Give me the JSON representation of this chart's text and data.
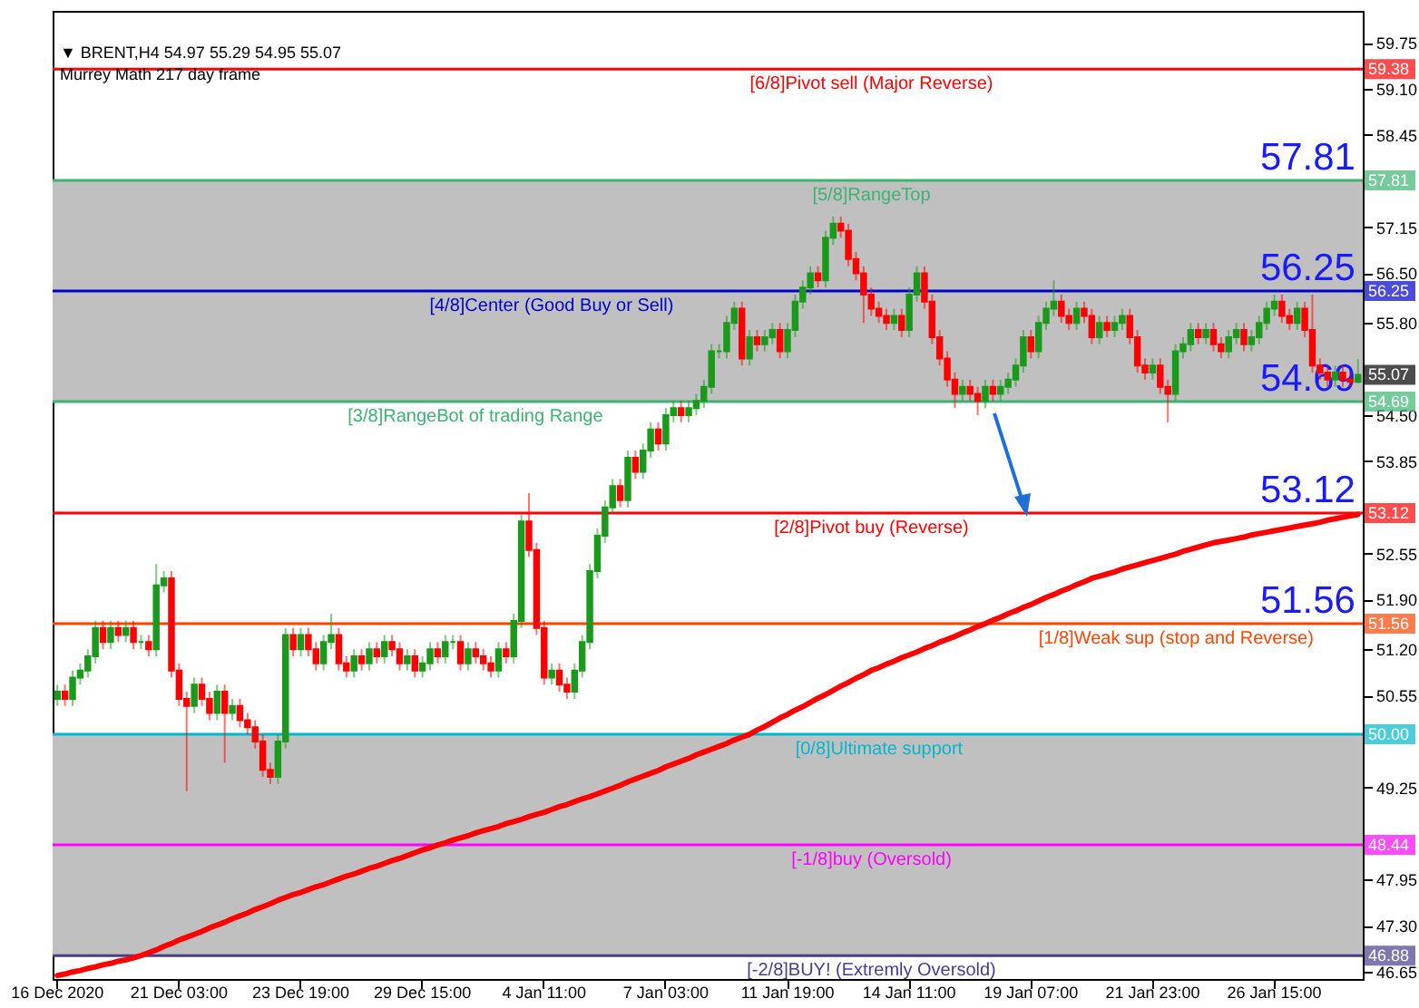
{
  "chart_data": {
    "type": "candlestick",
    "title": "▼ BRENT,H4  54.97 55.29 54.95 55.07",
    "subtitle": "Murrey Math 217 day frame",
    "categories": [
      "16 Dec 2020",
      null,
      null,
      null,
      null,
      null,
      null,
      null,
      null,
      null,
      null,
      null,
      null,
      null,
      null,
      null,
      "21 Dec 03:00",
      null,
      null,
      null,
      null,
      null,
      null,
      null,
      null,
      null,
      null,
      null,
      null,
      null,
      null,
      null,
      "23 Dec 19:00",
      null,
      null,
      null,
      null,
      null,
      null,
      null,
      null,
      null,
      null,
      null,
      null,
      null,
      null,
      null,
      "29 Dec 15:00",
      null,
      null,
      null,
      null,
      null,
      null,
      null,
      null,
      null,
      null,
      null,
      null,
      null,
      null,
      null,
      "4 Jan 11:00",
      null,
      null,
      null,
      null,
      null,
      null,
      null,
      null,
      null,
      null,
      null,
      null,
      null,
      null,
      null,
      "7 Jan 03:00",
      null,
      null,
      null,
      null,
      null,
      null,
      null,
      null,
      null,
      null,
      null,
      null,
      null,
      null,
      null,
      "11 Jan 19:00",
      null,
      null,
      null,
      null,
      null,
      null,
      null,
      null,
      null,
      null,
      null,
      null,
      null,
      null,
      null,
      "14 Jan 11:00",
      null,
      null,
      null,
      null,
      null,
      null,
      null,
      null,
      null,
      null,
      null,
      null,
      null,
      null,
      null,
      "19 Jan 07:00",
      null,
      null,
      null,
      null,
      null,
      null,
      null,
      null,
      null,
      null,
      null,
      null,
      null,
      null,
      null,
      "21 Jan 23:00",
      null,
      null,
      null,
      null,
      null,
      null,
      null,
      null,
      null,
      null,
      null,
      null,
      null,
      null,
      null,
      "26 Jan 15:00",
      null,
      null,
      null,
      null,
      null,
      null,
      null,
      null,
      null,
      null,
      null
    ],
    "ohlc": [
      [
        50.5,
        50.7,
        50.4,
        50.6
      ],
      [
        50.6,
        50.7,
        50.4,
        50.5
      ],
      [
        50.5,
        50.9,
        50.4,
        50.8
      ],
      [
        50.8,
        51.0,
        50.7,
        50.9
      ],
      [
        50.9,
        51.2,
        50.8,
        51.1
      ],
      [
        51.1,
        51.6,
        51.0,
        51.5
      ],
      [
        51.5,
        51.6,
        51.2,
        51.3
      ],
      [
        51.3,
        51.6,
        51.2,
        51.5
      ],
      [
        51.5,
        51.6,
        51.3,
        51.4
      ],
      [
        51.4,
        51.6,
        51.3,
        51.5
      ],
      [
        51.5,
        51.6,
        51.2,
        51.3
      ],
      [
        51.3,
        51.4,
        51.2,
        51.3
      ],
      [
        51.3,
        51.4,
        51.1,
        51.2
      ],
      [
        51.2,
        52.4,
        51.1,
        52.1
      ],
      [
        52.1,
        52.3,
        52.0,
        52.2
      ],
      [
        52.2,
        52.3,
        50.8,
        50.9
      ],
      [
        50.9,
        51.0,
        50.4,
        50.5
      ],
      [
        50.5,
        50.6,
        49.2,
        50.4
      ],
      [
        50.4,
        50.8,
        50.3,
        50.7
      ],
      [
        50.7,
        50.8,
        50.4,
        50.5
      ],
      [
        50.5,
        50.6,
        50.2,
        50.3
      ],
      [
        50.3,
        50.7,
        50.2,
        50.6
      ],
      [
        50.6,
        50.7,
        49.6,
        50.3
      ],
      [
        50.3,
        50.5,
        50.2,
        50.4
      ],
      [
        50.4,
        50.5,
        50.1,
        50.2
      ],
      [
        50.2,
        50.3,
        50.0,
        50.1
      ],
      [
        50.1,
        50.2,
        49.8,
        49.9
      ],
      [
        49.9,
        50.0,
        49.4,
        49.5
      ],
      [
        49.5,
        49.6,
        49.3,
        49.4
      ],
      [
        49.4,
        50.0,
        49.3,
        49.9
      ],
      [
        49.9,
        51.5,
        49.8,
        51.4
      ],
      [
        51.4,
        51.5,
        51.1,
        51.2
      ],
      [
        51.2,
        51.5,
        51.1,
        51.4
      ],
      [
        51.4,
        51.5,
        51.1,
        51.2
      ],
      [
        51.2,
        51.3,
        50.9,
        51.0
      ],
      [
        51.0,
        51.4,
        50.9,
        51.3
      ],
      [
        51.3,
        51.7,
        51.2,
        51.4
      ],
      [
        51.4,
        51.5,
        50.9,
        51.0
      ],
      [
        51.0,
        51.1,
        50.8,
        50.9
      ],
      [
        50.9,
        51.2,
        50.8,
        51.1
      ],
      [
        51.1,
        51.2,
        50.9,
        51.0
      ],
      [
        51.0,
        51.3,
        50.9,
        51.2
      ],
      [
        51.2,
        51.3,
        51.0,
        51.1
      ],
      [
        51.1,
        51.4,
        51.0,
        51.3
      ],
      [
        51.3,
        51.4,
        51.1,
        51.2
      ],
      [
        51.2,
        51.3,
        50.9,
        51.0
      ],
      [
        51.0,
        51.2,
        50.9,
        51.1
      ],
      [
        51.1,
        51.2,
        50.8,
        50.9
      ],
      [
        50.9,
        51.1,
        50.8,
        51.0
      ],
      [
        51.0,
        51.3,
        50.9,
        51.2
      ],
      [
        51.2,
        51.3,
        51.0,
        51.1
      ],
      [
        51.1,
        51.4,
        51.0,
        51.3
      ],
      [
        51.3,
        51.4,
        51.2,
        51.3
      ],
      [
        51.3,
        51.4,
        50.9,
        51.0
      ],
      [
        51.0,
        51.3,
        50.9,
        51.2
      ],
      [
        51.2,
        51.3,
        51.0,
        51.1
      ],
      [
        51.1,
        51.2,
        50.9,
        51.0
      ],
      [
        51.0,
        51.1,
        50.8,
        50.9
      ],
      [
        50.9,
        51.3,
        50.8,
        51.2
      ],
      [
        51.2,
        51.3,
        51.0,
        51.1
      ],
      [
        51.1,
        51.7,
        51.0,
        51.6
      ],
      [
        51.6,
        53.1,
        51.5,
        53.0
      ],
      [
        53.0,
        53.4,
        52.5,
        52.6
      ],
      [
        52.6,
        52.7,
        51.4,
        51.5
      ],
      [
        51.5,
        51.6,
        50.7,
        50.8
      ],
      [
        50.8,
        51.0,
        50.7,
        50.9
      ],
      [
        50.9,
        51.0,
        50.6,
        50.7
      ],
      [
        50.7,
        50.8,
        50.5,
        50.6
      ],
      [
        50.6,
        51.0,
        50.5,
        50.9
      ],
      [
        50.9,
        51.4,
        50.8,
        51.3
      ],
      [
        51.3,
        52.4,
        51.2,
        52.3
      ],
      [
        52.3,
        52.9,
        52.2,
        52.8
      ],
      [
        52.8,
        53.3,
        52.7,
        53.2
      ],
      [
        53.2,
        53.6,
        53.1,
        53.5
      ],
      [
        53.5,
        53.6,
        53.2,
        53.3
      ],
      [
        53.3,
        54.0,
        53.2,
        53.9
      ],
      [
        53.9,
        54.0,
        53.6,
        53.7
      ],
      [
        53.7,
        54.1,
        53.6,
        54.0
      ],
      [
        54.0,
        54.4,
        53.9,
        54.3
      ],
      [
        54.3,
        54.4,
        54.0,
        54.1
      ],
      [
        54.1,
        54.6,
        54.0,
        54.5
      ],
      [
        54.5,
        54.7,
        54.4,
        54.6
      ],
      [
        54.6,
        54.7,
        54.4,
        54.5
      ],
      [
        54.5,
        54.7,
        54.4,
        54.6
      ],
      [
        54.6,
        54.8,
        54.5,
        54.7
      ],
      [
        54.7,
        55.0,
        54.6,
        54.9
      ],
      [
        54.9,
        55.5,
        54.8,
        55.4
      ],
      [
        55.4,
        55.5,
        55.3,
        55.4
      ],
      [
        55.4,
        55.9,
        55.3,
        55.8
      ],
      [
        55.8,
        56.1,
        55.7,
        56.0
      ],
      [
        56.0,
        56.1,
        55.2,
        55.3
      ],
      [
        55.3,
        55.7,
        55.2,
        55.6
      ],
      [
        55.6,
        55.7,
        55.4,
        55.5
      ],
      [
        55.5,
        55.7,
        55.4,
        55.6
      ],
      [
        55.6,
        55.8,
        55.5,
        55.7
      ],
      [
        55.7,
        55.8,
        55.3,
        55.4
      ],
      [
        55.4,
        55.8,
        55.3,
        55.7
      ],
      [
        55.7,
        56.2,
        55.6,
        56.1
      ],
      [
        56.1,
        56.4,
        56.0,
        56.3
      ],
      [
        56.3,
        56.6,
        56.2,
        56.5
      ],
      [
        56.5,
        56.6,
        56.3,
        56.4
      ],
      [
        56.4,
        57.1,
        56.3,
        57.0
      ],
      [
        57.0,
        57.3,
        56.9,
        57.2
      ],
      [
        57.2,
        57.3,
        57.0,
        57.1
      ],
      [
        57.1,
        57.2,
        56.6,
        56.7
      ],
      [
        56.7,
        56.8,
        56.4,
        56.5
      ],
      [
        56.5,
        56.6,
        55.8,
        56.2
      ],
      [
        56.2,
        56.3,
        55.9,
        56.0
      ],
      [
        56.0,
        56.1,
        55.8,
        55.9
      ],
      [
        55.9,
        56.0,
        55.7,
        55.8
      ],
      [
        55.8,
        56.0,
        55.7,
        55.9
      ],
      [
        55.9,
        56.0,
        55.6,
        55.7
      ],
      [
        55.7,
        56.3,
        55.6,
        56.2
      ],
      [
        56.2,
        56.6,
        56.1,
        56.5
      ],
      [
        56.5,
        56.6,
        56.0,
        56.1
      ],
      [
        56.1,
        56.2,
        55.5,
        55.6
      ],
      [
        55.6,
        55.7,
        55.2,
        55.3
      ],
      [
        55.3,
        55.4,
        54.9,
        55.0
      ],
      [
        55.0,
        55.1,
        54.6,
        54.8
      ],
      [
        54.8,
        55.0,
        54.7,
        54.9
      ],
      [
        54.9,
        55.0,
        54.7,
        54.8
      ],
      [
        54.8,
        54.9,
        54.5,
        54.7
      ],
      [
        54.7,
        55.0,
        54.6,
        54.9
      ],
      [
        54.9,
        55.0,
        54.7,
        54.8
      ],
      [
        54.8,
        55.0,
        54.7,
        54.9
      ],
      [
        54.9,
        55.1,
        54.8,
        55.0
      ],
      [
        55.0,
        55.3,
        54.9,
        55.2
      ],
      [
        55.2,
        55.7,
        55.1,
        55.6
      ],
      [
        55.6,
        55.7,
        55.3,
        55.4
      ],
      [
        55.4,
        55.9,
        55.3,
        55.8
      ],
      [
        55.8,
        56.1,
        55.7,
        56.0
      ],
      [
        56.0,
        56.4,
        55.9,
        56.1
      ],
      [
        56.1,
        56.2,
        55.8,
        55.9
      ],
      [
        55.9,
        56.0,
        55.7,
        55.8
      ],
      [
        55.8,
        56.1,
        55.7,
        56.0
      ],
      [
        56.0,
        56.1,
        55.8,
        55.9
      ],
      [
        55.9,
        56.0,
        55.5,
        55.6
      ],
      [
        55.6,
        55.9,
        55.5,
        55.8
      ],
      [
        55.8,
        55.9,
        55.6,
        55.7
      ],
      [
        55.7,
        55.9,
        55.6,
        55.8
      ],
      [
        55.8,
        56.0,
        55.7,
        55.9
      ],
      [
        55.9,
        56.0,
        55.5,
        55.6
      ],
      [
        55.6,
        55.7,
        55.1,
        55.2
      ],
      [
        55.2,
        55.3,
        55.0,
        55.1
      ],
      [
        55.1,
        55.3,
        55.0,
        55.2
      ],
      [
        55.2,
        55.3,
        54.8,
        54.9
      ],
      [
        54.9,
        55.0,
        54.4,
        54.8
      ],
      [
        54.8,
        55.5,
        54.7,
        55.4
      ],
      [
        55.4,
        55.6,
        55.3,
        55.5
      ],
      [
        55.5,
        55.8,
        55.4,
        55.7
      ],
      [
        55.7,
        55.8,
        55.5,
        55.6
      ],
      [
        55.6,
        55.8,
        55.5,
        55.7
      ],
      [
        55.7,
        55.8,
        55.4,
        55.5
      ],
      [
        55.5,
        55.6,
        55.3,
        55.4
      ],
      [
        55.4,
        55.7,
        55.3,
        55.6
      ],
      [
        55.6,
        55.8,
        55.5,
        55.7
      ],
      [
        55.7,
        55.8,
        55.4,
        55.5
      ],
      [
        55.5,
        55.7,
        55.4,
        55.6
      ],
      [
        55.6,
        55.9,
        55.5,
        55.8
      ],
      [
        55.8,
        56.1,
        55.7,
        56.0
      ],
      [
        56.0,
        56.2,
        55.9,
        56.1
      ],
      [
        56.1,
        56.2,
        55.8,
        55.9
      ],
      [
        55.9,
        56.0,
        55.7,
        55.8
      ],
      [
        55.8,
        56.1,
        55.7,
        56.0
      ],
      [
        56.0,
        56.1,
        55.6,
        55.7
      ],
      [
        55.7,
        56.2,
        55.1,
        55.2
      ],
      [
        55.2,
        55.3,
        55.0,
        55.1
      ],
      [
        55.1,
        55.2,
        54.9,
        55.0
      ],
      [
        55.0,
        55.2,
        54.9,
        55.1
      ],
      [
        55.1,
        55.2,
        54.9,
        55.0
      ],
      [
        55.0,
        55.1,
        54.9,
        54.97
      ],
      [
        54.97,
        55.29,
        54.95,
        55.07
      ]
    ],
    "series": [
      {
        "type": "line",
        "color": "#ff0000",
        "values": [
          46.6,
          46.62,
          46.65,
          46.67,
          46.7,
          46.72,
          46.75,
          46.77,
          46.8,
          46.82,
          46.85,
          46.88,
          46.92,
          46.96,
          47.01,
          47.05,
          47.1,
          47.14,
          47.18,
          47.22,
          47.27,
          47.31,
          47.35,
          47.4,
          47.44,
          47.48,
          47.53,
          47.57,
          47.61,
          47.66,
          47.7,
          47.74,
          47.77,
          47.81,
          47.85,
          47.88,
          47.92,
          47.96,
          48.0,
          48.03,
          48.07,
          48.11,
          48.14,
          48.18,
          48.22,
          48.25,
          48.29,
          48.33,
          48.37,
          48.4,
          48.44,
          48.47,
          48.51,
          48.54,
          48.57,
          48.61,
          48.64,
          48.67,
          48.7,
          48.74,
          48.77,
          48.8,
          48.84,
          48.87,
          48.9,
          48.94,
          48.98,
          49.01,
          49.05,
          49.09,
          49.12,
          49.16,
          49.2,
          49.24,
          49.28,
          49.33,
          49.37,
          49.41,
          49.45,
          49.49,
          49.54,
          49.58,
          49.62,
          49.66,
          49.71,
          49.75,
          49.79,
          49.83,
          49.87,
          49.92,
          49.96,
          50.0,
          50.06,
          50.11,
          50.17,
          50.23,
          50.28,
          50.34,
          50.39,
          50.45,
          50.51,
          50.56,
          50.62,
          50.68,
          50.73,
          50.79,
          50.84,
          50.9,
          50.94,
          50.99,
          51.03,
          51.08,
          51.12,
          51.16,
          51.21,
          51.25,
          51.3,
          51.34,
          51.38,
          51.43,
          51.47,
          51.52,
          51.56,
          51.61,
          51.65,
          51.7,
          51.74,
          51.79,
          51.83,
          51.88,
          51.93,
          51.97,
          52.02,
          52.06,
          52.11,
          52.15,
          52.2,
          52.23,
          52.26,
          52.29,
          52.33,
          52.36,
          52.39,
          52.42,
          52.45,
          52.48,
          52.51,
          52.54,
          52.58,
          52.61,
          52.64,
          52.67,
          52.7,
          52.72,
          52.74,
          52.76,
          52.78,
          52.81,
          52.83,
          52.85,
          52.87,
          52.89,
          52.91,
          52.93,
          52.95,
          52.97,
          52.99,
          53.02,
          53.04,
          53.06,
          53.08,
          53.1
        ]
      }
    ],
    "ylim": [
      46.55,
      60.2
    ],
    "yticks": [
      59.75,
      {
        "value": 59.1,
        "label": "59.10"
      },
      58.45,
      57.15,
      {
        "value": 56.5,
        "label": "56.50"
      },
      {
        "value": 55.8,
        "label": "55.80"
      },
      {
        "value": 54.5,
        "label": "54.50"
      },
      53.85,
      52.55,
      {
        "value": 51.9,
        "label": "51.90"
      },
      {
        "value": 51.2,
        "label": "51.20"
      },
      50.55,
      49.25,
      47.95,
      {
        "value": 47.3,
        "label": "47.30"
      },
      46.65
    ],
    "ref_lines": [
      {
        "axis": "y",
        "value": 59.38,
        "label": "[6/8]Pivot sell (Major Reverse)",
        "color": "#ff0000"
      },
      {
        "axis": "y",
        "value": 57.81,
        "label": "[5/8]RangeTop",
        "color": "#3cb371"
      },
      {
        "axis": "y",
        "value": 56.25,
        "label": "[4/8]Center (Good Buy or Sell)",
        "color": "#0000cd"
      },
      {
        "axis": "y",
        "value": 54.69,
        "label": "[3/8]RangeBot of trading Range",
        "color": "#3cb371"
      },
      {
        "axis": "y",
        "value": 53.12,
        "label": "[2/8]Pivot buy (Reverse)",
        "color": "#ff0000"
      },
      {
        "axis": "y",
        "value": 51.56,
        "label": "[1/8]Weak sup (stop and Reverse)",
        "color": "#ff4500"
      },
      {
        "axis": "y",
        "value": 50.0,
        "label": "[0/8]Ultimate support",
        "color": "#00b8cc"
      },
      {
        "axis": "y",
        "value": 48.44,
        "label": "[-1/8]buy (Oversold)",
        "color": "#ff00ff"
      },
      {
        "axis": "y",
        "value": 46.88,
        "label": "[-2/8]BUY! (Extremly Oversold)",
        "color": "#483d8b"
      }
    ],
    "bands": [
      {
        "axis": "y",
        "from": 54.69,
        "to": 57.81,
        "color": "#c0c0c0"
      },
      {
        "axis": "y",
        "from": 46.88,
        "to": 50.0,
        "color": "#c0c0c0"
      }
    ],
    "annotations": [
      {
        "text": "59.38",
        "y": 59.38
      },
      {
        "text": "57.81",
        "y": 57.81
      },
      {
        "text": "56.25",
        "y": 56.25
      },
      {
        "text": "54.69",
        "y": 54.69
      },
      {
        "text": "53.12",
        "y": 53.12
      },
      {
        "text": "51.56",
        "y": 51.56
      },
      {
        "text": "50.00",
        "y": 50.0
      },
      {
        "text": "48.44",
        "y": 48.44
      },
      {
        "text": "46.88",
        "y": 46.88
      },
      {
        "text": "55.07",
        "y": 55.07
      },
      {
        "text": "57.81",
        "y": 57.81
      },
      {
        "text": "56.25",
        "y": 56.25
      },
      {
        "text": "54.69",
        "y": 54.69
      },
      {
        "text": "53.12",
        "y": 53.12
      },
      {
        "text": "51.56",
        "y": 51.56
      }
    ],
    "grid": false
  }
}
